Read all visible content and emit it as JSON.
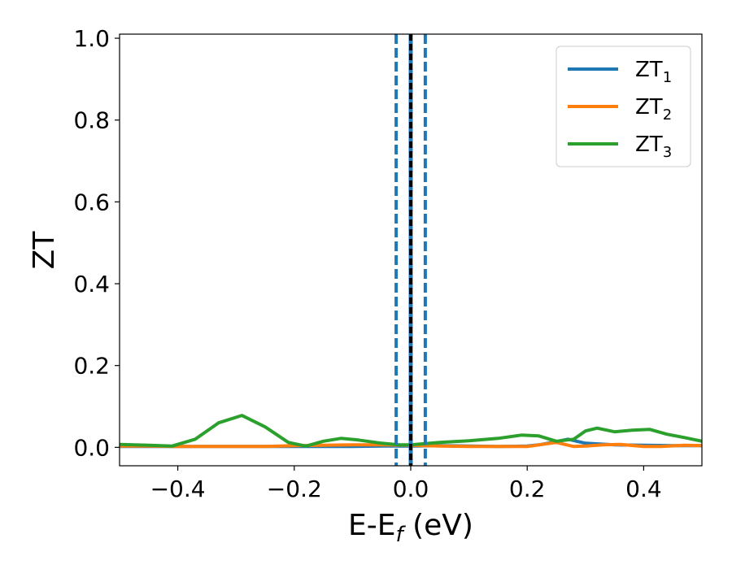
{
  "chart_data": {
    "type": "line",
    "xlabel": "E-E",
    "xlabel_sub": "f",
    "xlabel_unit": " (eV)",
    "ylabel": "ZT",
    "xlim": [
      -0.5,
      0.5
    ],
    "ylim": [
      -0.045,
      1.01
    ],
    "xticks": [
      -0.4,
      -0.2,
      0.0,
      0.2,
      0.4
    ],
    "xtick_labels": [
      "−0.4",
      "−0.2",
      "0.0",
      "0.2",
      "0.4"
    ],
    "yticks": [
      0.0,
      0.2,
      0.4,
      0.6,
      0.8,
      1.0
    ],
    "ytick_labels": [
      "0.0",
      "0.2",
      "0.4",
      "0.6",
      "0.8",
      "1.0"
    ],
    "grid": false,
    "legend_position": "top-right",
    "vlines": [
      {
        "x": -0.025,
        "style": "dashed",
        "color": "#1f77b4"
      },
      {
        "x": 0.0,
        "style": "solid",
        "color": "#1f77b4"
      },
      {
        "x": 0.0,
        "style": "dashed",
        "color": "#000000"
      },
      {
        "x": 0.025,
        "style": "dashed",
        "color": "#1f77b4"
      }
    ],
    "series": [
      {
        "name": "ZT",
        "name_sub": "1",
        "color": "#1f77b4",
        "x": [
          -0.5,
          -0.45,
          -0.4,
          -0.35,
          -0.3,
          -0.25,
          -0.2,
          -0.15,
          -0.1,
          -0.05,
          0.0,
          0.05,
          0.1,
          0.15,
          0.2,
          0.22,
          0.25,
          0.27,
          0.3,
          0.35,
          0.4,
          0.45,
          0.5
        ],
        "values": [
          0.002,
          0.002,
          0.002,
          0.002,
          0.002,
          0.002,
          0.002,
          0.002,
          0.002,
          0.003,
          0.003,
          0.004,
          0.003,
          0.002,
          0.003,
          0.006,
          0.014,
          0.02,
          0.01,
          0.006,
          0.005,
          0.004,
          0.004
        ]
      },
      {
        "name": "ZT",
        "name_sub": "2",
        "color": "#ff7f0e",
        "x": [
          -0.5,
          -0.45,
          -0.4,
          -0.35,
          -0.3,
          -0.25,
          -0.2,
          -0.15,
          -0.1,
          -0.05,
          0.0,
          0.05,
          0.1,
          0.15,
          0.2,
          0.25,
          0.28,
          0.3,
          0.33,
          0.36,
          0.4,
          0.43,
          0.47,
          0.5
        ],
        "values": [
          0.003,
          0.003,
          0.002,
          0.002,
          0.002,
          0.002,
          0.004,
          0.005,
          0.006,
          0.006,
          0.005,
          0.003,
          0.002,
          0.002,
          0.002,
          0.012,
          0.002,
          0.003,
          0.006,
          0.007,
          0.002,
          0.002,
          0.005,
          0.004
        ]
      },
      {
        "name": "ZT",
        "name_sub": "3",
        "color": "#2ca02c",
        "x": [
          -0.5,
          -0.45,
          -0.41,
          -0.37,
          -0.33,
          -0.29,
          -0.25,
          -0.21,
          -0.18,
          -0.15,
          -0.12,
          -0.09,
          -0.05,
          -0.02,
          0.0,
          0.05,
          0.1,
          0.15,
          0.19,
          0.22,
          0.25,
          0.28,
          0.3,
          0.32,
          0.35,
          0.38,
          0.41,
          0.44,
          0.47,
          0.5
        ],
        "values": [
          0.007,
          0.005,
          0.003,
          0.02,
          0.06,
          0.078,
          0.05,
          0.012,
          0.003,
          0.015,
          0.022,
          0.018,
          0.01,
          0.006,
          0.006,
          0.012,
          0.016,
          0.022,
          0.03,
          0.028,
          0.015,
          0.02,
          0.04,
          0.047,
          0.038,
          0.042,
          0.044,
          0.032,
          0.024,
          0.015
        ]
      }
    ]
  }
}
